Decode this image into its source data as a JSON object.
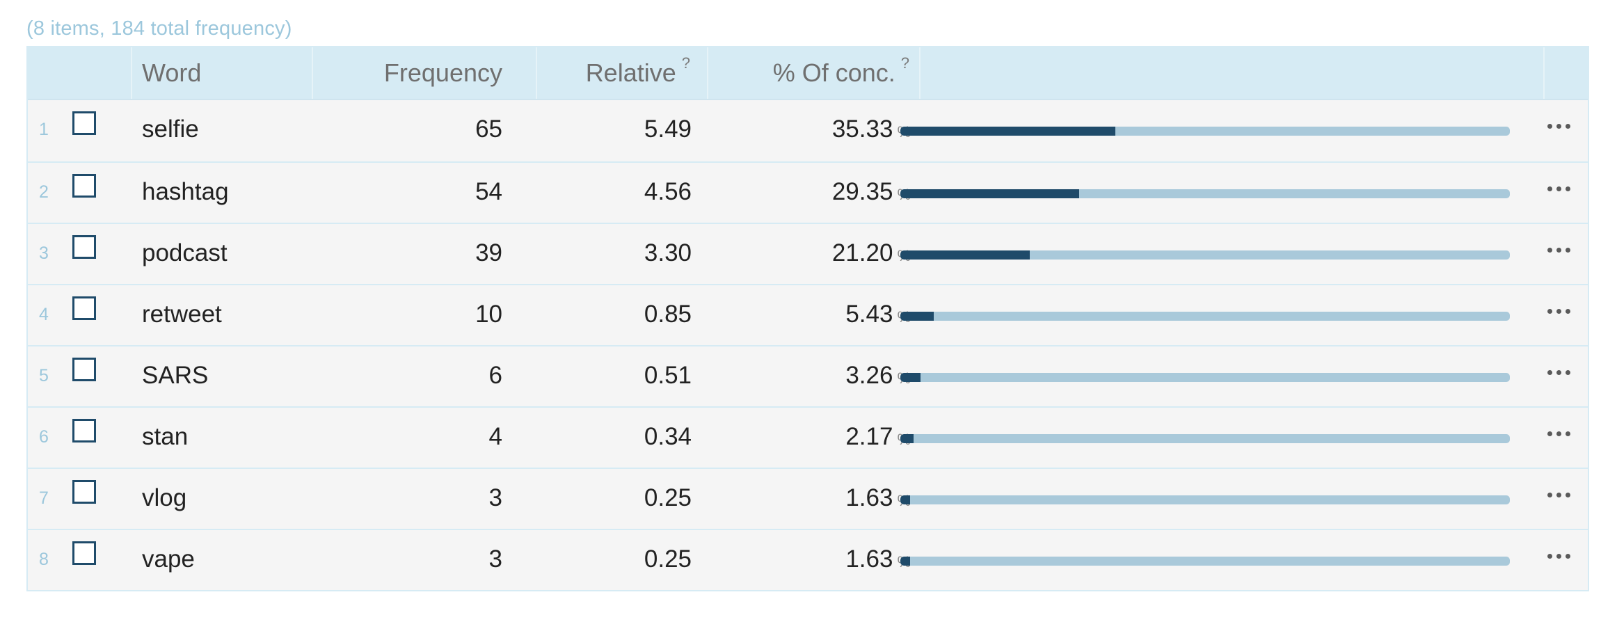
{
  "summary": "(8 items, 184 total frequency)",
  "columns": {
    "word": "Word",
    "frequency": "Frequency",
    "relative": "Relative",
    "relative_help": "?",
    "conc": "% Of conc.",
    "conc_help": "?"
  },
  "percent_symbol": "%",
  "colors": {
    "bar_fill": "#1f4b6a",
    "bar_track": "#a9c9da",
    "header_bg": "#d6ebf4",
    "row_number": "#9cc7dc"
  },
  "rows": [
    {
      "num": "1",
      "word": "selfie",
      "frequency": "65",
      "relative": "5.49",
      "conc": "35.33",
      "share": 0.3533
    },
    {
      "num": "2",
      "word": "hashtag",
      "frequency": "54",
      "relative": "4.56",
      "conc": "29.35",
      "share": 0.2935
    },
    {
      "num": "3",
      "word": "podcast",
      "frequency": "39",
      "relative": "3.30",
      "conc": "21.20",
      "share": 0.212
    },
    {
      "num": "4",
      "word": "retweet",
      "frequency": "10",
      "relative": "0.85",
      "conc": "5.43",
      "share": 0.0543
    },
    {
      "num": "5",
      "word": "SARS",
      "frequency": "6",
      "relative": "0.51",
      "conc": "3.26",
      "share": 0.0326
    },
    {
      "num": "6",
      "word": "stan",
      "frequency": "4",
      "relative": "0.34",
      "conc": "2.17",
      "share": 0.0217
    },
    {
      "num": "7",
      "word": "vlog",
      "frequency": "3",
      "relative": "0.25",
      "conc": "1.63",
      "share": 0.0163
    },
    {
      "num": "8",
      "word": "vape",
      "frequency": "3",
      "relative": "0.25",
      "conc": "1.63",
      "share": 0.0163
    }
  ]
}
